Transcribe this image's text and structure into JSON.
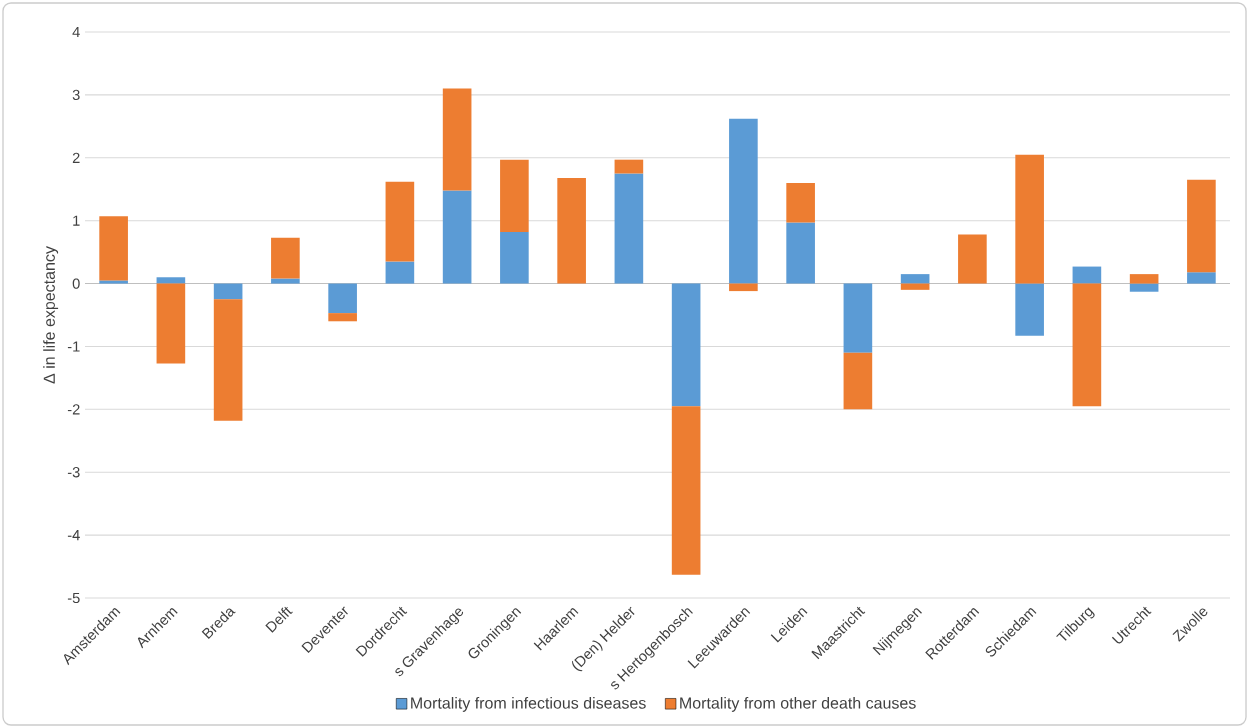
{
  "chart_data": {
    "type": "bar",
    "stacked": true,
    "ylabel": "Δ in life expectancy",
    "categories": [
      "Amsterdam",
      "Arnhem",
      "Breda",
      "Delft",
      "Deventer",
      "Dordrecht",
      "s Gravenhage",
      "Groningen",
      "Haarlem",
      "(Den) Helder",
      "s Hertogenbosch",
      "Leeuwarden",
      "Leiden",
      "Maastricht",
      "Nijmegen",
      "Rotterdam",
      "Schiedam",
      "Tilburg",
      "Utrecht",
      "Zwolle"
    ],
    "series": [
      {
        "name": "Mortality from infectious diseases",
        "color": "#5b9bd5",
        "values": [
          0.05,
          0.1,
          -0.25,
          0.08,
          -0.47,
          0.35,
          1.48,
          0.82,
          0,
          1.75,
          -1.95,
          2.62,
          0.97,
          -1.1,
          0.15,
          0,
          -0.83,
          0.27,
          -0.13,
          0.18
        ]
      },
      {
        "name": "Mortality from other death causes",
        "color": "#ed7d31",
        "values": [
          1.02,
          -1.27,
          -1.93,
          0.65,
          -0.13,
          1.27,
          1.62,
          1.15,
          1.68,
          0.22,
          -2.68,
          -0.12,
          0.63,
          -0.9,
          -0.1,
          0.78,
          2.05,
          -1.95,
          0.15,
          1.47
        ]
      }
    ],
    "ylim": [
      -5,
      4
    ],
    "yticks": [
      -5,
      -4,
      -3,
      -2,
      -1,
      0,
      1,
      2,
      3,
      4
    ],
    "grid": "y",
    "legend": "bottom"
  }
}
